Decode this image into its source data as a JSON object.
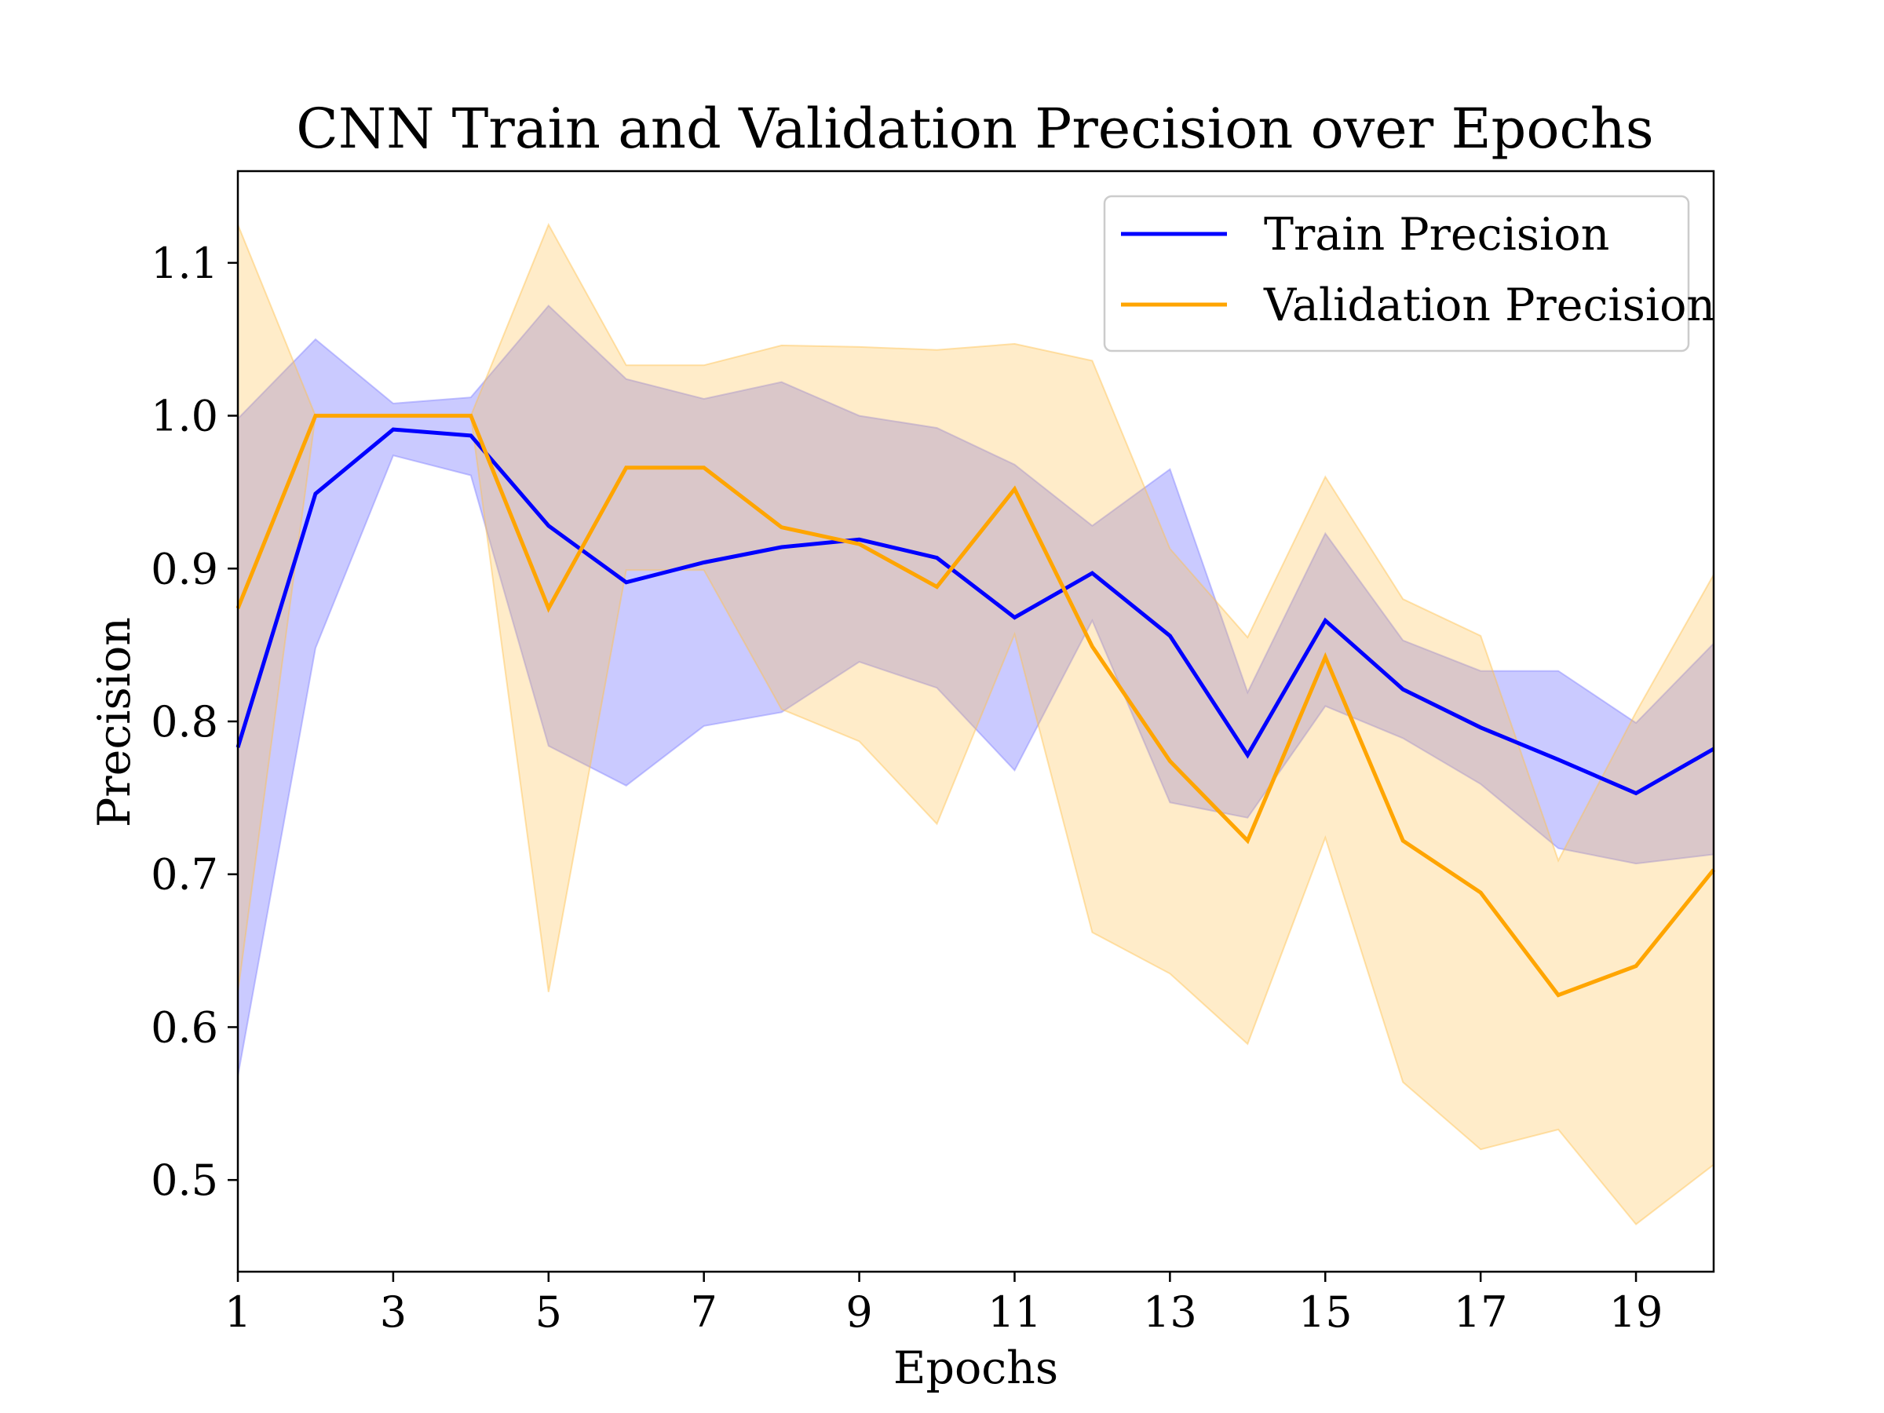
{
  "chart_data": {
    "type": "line",
    "title": "CNN Train and Validation Precision over Epochs",
    "xlabel": "Epochs",
    "ylabel": "Precision",
    "xlim": [
      1,
      20
    ],
    "ylim": [
      0.44,
      1.16
    ],
    "xticks": [
      1,
      3,
      5,
      7,
      9,
      11,
      13,
      15,
      17,
      19
    ],
    "yticks": [
      0.5,
      0.6,
      0.7,
      0.8,
      0.9,
      1.0,
      1.1
    ],
    "ytick_labels": [
      "0.5",
      "0.6",
      "0.7",
      "0.8",
      "0.9",
      "1.0",
      "1.1"
    ],
    "grid": false,
    "legend_position": "top-right",
    "x": [
      1,
      2,
      3,
      4,
      5,
      6,
      7,
      8,
      9,
      10,
      11,
      12,
      13,
      14,
      15,
      16,
      17,
      18,
      19,
      20
    ],
    "series": [
      {
        "name": "Train Precision",
        "color": "#0000ff",
        "band_color": "#8080ff",
        "values": [
          0.783,
          0.949,
          0.991,
          0.987,
          0.928,
          0.891,
          0.904,
          0.914,
          0.919,
          0.907,
          0.868,
          0.897,
          0.856,
          0.778,
          0.866,
          0.821,
          0.796,
          0.775,
          0.753,
          0.782
        ],
        "upper": [
          0.998,
          1.05,
          1.008,
          1.012,
          1.072,
          1.024,
          1.011,
          1.022,
          1.0,
          0.992,
          0.968,
          0.928,
          0.965,
          0.819,
          0.923,
          0.853,
          0.833,
          0.833,
          0.799,
          0.851
        ],
        "lower": [
          0.568,
          0.848,
          0.974,
          0.961,
          0.784,
          0.758,
          0.797,
          0.806,
          0.839,
          0.822,
          0.768,
          0.866,
          0.747,
          0.737,
          0.81,
          0.789,
          0.759,
          0.717,
          0.707,
          0.713
        ]
      },
      {
        "name": "Validation Precision",
        "color": "#ffa500",
        "band_color": "#ffc04d",
        "values": [
          0.874,
          1.0,
          1.0,
          1.0,
          0.874,
          0.966,
          0.966,
          0.927,
          0.916,
          0.888,
          0.952,
          0.849,
          0.774,
          0.722,
          0.842,
          0.722,
          0.688,
          0.621,
          0.64,
          0.703
        ],
        "upper": [
          1.125,
          1.0,
          1.0,
          1.0,
          1.125,
          1.033,
          1.033,
          1.046,
          1.045,
          1.043,
          1.047,
          1.036,
          0.913,
          0.855,
          0.96,
          0.88,
          0.856,
          0.709,
          0.806,
          0.896
        ],
        "lower": [
          0.623,
          1.0,
          1.0,
          1.0,
          0.623,
          0.899,
          0.899,
          0.808,
          0.787,
          0.733,
          0.857,
          0.662,
          0.635,
          0.589,
          0.724,
          0.564,
          0.52,
          0.533,
          0.471,
          0.51
        ]
      }
    ]
  }
}
